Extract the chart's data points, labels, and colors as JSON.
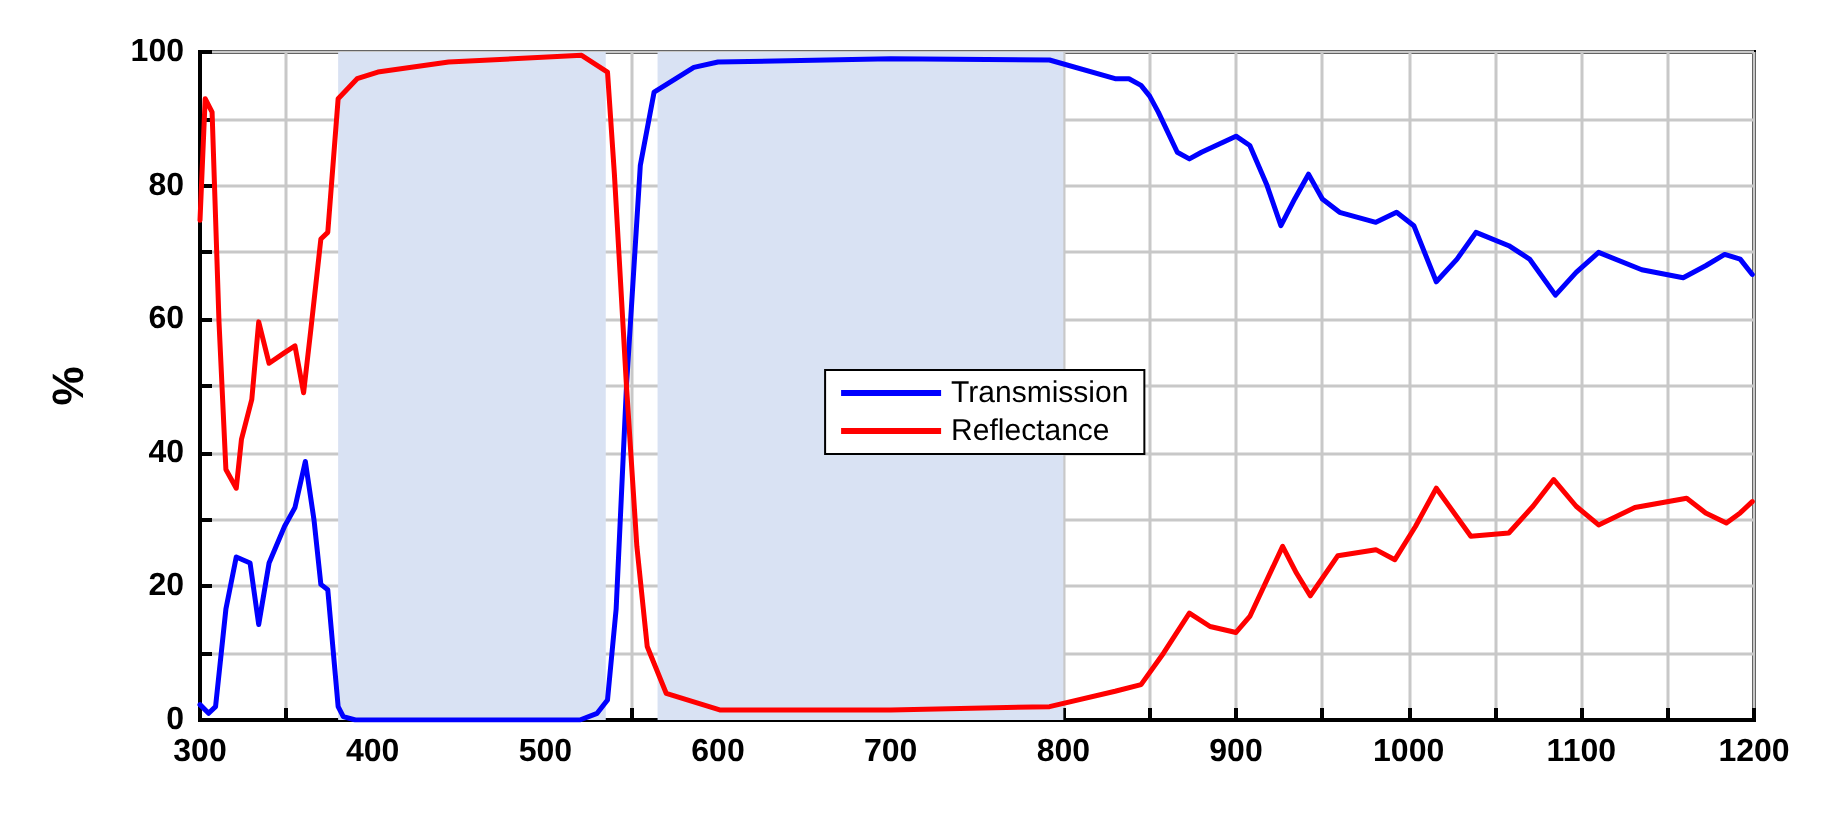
{
  "chart_data": {
    "type": "line",
    "ylabel": "%",
    "xlim": [
      300,
      1200
    ],
    "ylim": [
      0,
      100
    ],
    "xticks": [
      300,
      {
        "value": 350,
        "label": null
      },
      400,
      {
        "value": 450,
        "label": null
      },
      500,
      {
        "value": 550,
        "label": null
      },
      600,
      {
        "value": 650,
        "label": null
      },
      700,
      {
        "value": 750,
        "label": null
      },
      800,
      {
        "value": 850,
        "label": null
      },
      900,
      {
        "value": 950,
        "label": null
      },
      1000,
      {
        "value": 1050,
        "label": null
      },
      1100,
      {
        "value": 1150,
        "label": null
      },
      1200
    ],
    "yticks": [
      0,
      {
        "value": 10,
        "label": null
      },
      20,
      {
        "value": 30,
        "label": null
      },
      40,
      {
        "value": 50,
        "label": null
      },
      60,
      {
        "value": 70,
        "label": null
      },
      80,
      {
        "value": 90,
        "label": null
      },
      100
    ],
    "grid": true,
    "legend": "center",
    "line_style": "solid",
    "marker": "none",
    "bands": [
      {
        "axis": "x",
        "from": 380,
        "to": 535,
        "color": "#d9e2f3"
      },
      {
        "axis": "x",
        "from": 565,
        "to": 800,
        "color": "#d9e2f3"
      }
    ],
    "series": [
      {
        "name": "Transmission",
        "color": "#0000ff",
        "x": [
          300,
          305,
          309,
          315,
          321,
          329,
          334,
          340,
          349,
          355,
          361,
          366,
          370,
          374,
          380,
          383,
          390,
          450,
          500,
          520,
          530,
          536,
          541,
          547,
          555,
          563,
          586,
          600,
          700,
          792,
          830,
          838,
          845,
          850,
          855,
          866,
          873,
          880,
          900,
          908,
          918,
          926,
          934,
          942,
          950,
          960,
          981,
          993,
          1003,
          1016,
          1028,
          1039,
          1058,
          1070,
          1085,
          1097,
          1110,
          1135,
          1159,
          1172,
          1183,
          1192,
          1199
        ],
        "values": [
          2.3,
          1,
          2,
          16.6,
          24.4,
          23.5,
          14.3,
          23.5,
          29,
          31.8,
          38.7,
          30,
          20.3,
          19.5,
          2,
          0.5,
          0,
          0,
          0,
          0,
          1,
          3,
          16.6,
          50,
          83,
          94,
          97.7,
          98.5,
          99,
          98.8,
          96,
          96,
          95,
          93.4,
          91,
          85,
          84,
          85,
          87.4,
          86,
          80,
          74,
          78,
          81.7,
          78,
          76,
          74.5,
          76,
          74,
          65.6,
          69,
          73,
          71,
          69,
          63.6,
          67,
          70,
          67.4,
          66.2,
          68,
          69.7,
          69,
          66.7
        ]
      },
      {
        "name": "Reflectance",
        "color": "#ff0000",
        "x": [
          300,
          303,
          307,
          311,
          315,
          321,
          324,
          330,
          334,
          340,
          349,
          355,
          360,
          364,
          370,
          374,
          380,
          391,
          403,
          444,
          521,
          536,
          540,
          547,
          553,
          559,
          570,
          601,
          700,
          792,
          830,
          845,
          858,
          873,
          885,
          900,
          908,
          927,
          935,
          943,
          959,
          981,
          992,
          1004,
          1016,
          1036,
          1058,
          1072,
          1084,
          1097,
          1110,
          1131,
          1161,
          1172,
          1184,
          1192,
          1199
        ],
        "values": [
          74.8,
          93,
          91,
          59.6,
          37.5,
          34.7,
          42,
          48,
          59.6,
          53.4,
          55,
          56,
          49,
          58,
          72,
          73,
          93,
          96,
          97,
          98.5,
          99.5,
          97,
          81.7,
          50,
          26,
          11,
          4,
          1.5,
          1.5,
          2,
          4.3,
          5.3,
          10,
          16,
          14,
          13.1,
          15.5,
          26,
          22,
          18.6,
          24.6,
          25.5,
          24,
          29,
          34.7,
          27.5,
          28,
          32,
          36,
          32,
          29.2,
          31.8,
          33.2,
          31,
          29.5,
          31,
          32.7
        ]
      }
    ]
  }
}
